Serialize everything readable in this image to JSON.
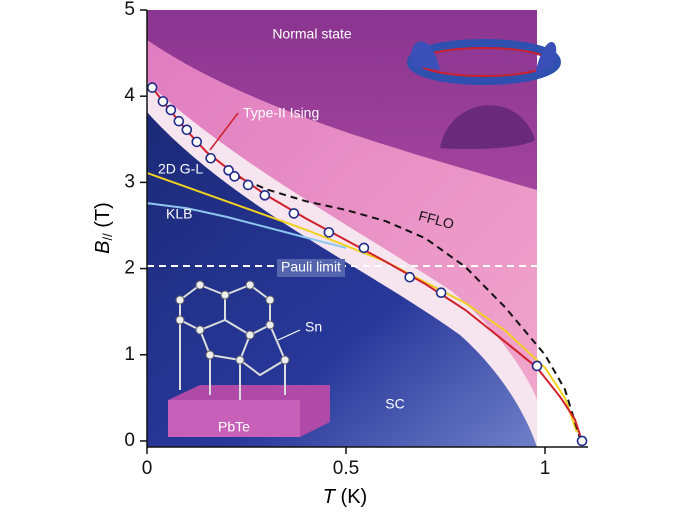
{
  "chart_data": {
    "type": "scatter",
    "xlabel": {
      "symbol": "T",
      "unit": "(K)"
    },
    "ylabel": {
      "symbol": "B",
      "subscript": "//",
      "unit": "(T)"
    },
    "xlim": [
      0,
      1.108
    ],
    "ylim": [
      -0.07,
      5
    ],
    "xticks": [
      0,
      0.5,
      1
    ],
    "yticks": [
      0,
      1,
      2,
      3,
      4,
      5
    ],
    "annotations": [
      "Normal state",
      "SC",
      "Sn",
      "PbTe"
    ],
    "series": [
      {
        "color": "#1f2a8a",
        "style": "markers",
        "x": [
          0.013,
          0.04,
          0.06,
          0.08,
          0.1,
          0.125,
          0.16,
          0.205,
          0.22,
          0.254,
          0.296,
          0.369,
          0.457,
          0.545,
          0.66,
          0.739,
          0.98,
          1.093
        ],
        "values": [
          4.1,
          3.94,
          3.84,
          3.71,
          3.61,
          3.47,
          3.28,
          3.14,
          3.07,
          2.97,
          2.85,
          2.64,
          2.42,
          2.24,
          1.9,
          1.72,
          0.87,
          0.0
        ]
      },
      {
        "name": "Type-II Ising",
        "color": "#d0202a",
        "style": "solid",
        "x": [
          0.013,
          0.05,
          0.1,
          0.15,
          0.2,
          0.3,
          0.4,
          0.5,
          0.6,
          0.7,
          0.8,
          0.9,
          0.98,
          1.04,
          1.075,
          1.093
        ],
        "values": [
          4.1,
          3.88,
          3.6,
          3.35,
          3.17,
          2.85,
          2.58,
          2.33,
          2.08,
          1.82,
          1.52,
          1.15,
          0.85,
          0.5,
          0.25,
          0.0
        ]
      },
      {
        "name": "FFLO",
        "color": "#111111",
        "style": "dashed",
        "x": [
          0.22,
          0.3,
          0.4,
          0.5,
          0.6,
          0.7,
          0.8,
          0.9,
          1.0,
          1.05,
          1.09
        ],
        "values": [
          3.08,
          2.92,
          2.78,
          2.68,
          2.55,
          2.35,
          2.02,
          1.55,
          1.0,
          0.6,
          0.0
        ]
      },
      {
        "name": "2D G-L",
        "color": "#f0d020",
        "style": "solid",
        "x": [
          0,
          0.2,
          0.4,
          0.6,
          0.8,
          0.9,
          1.0,
          1.05,
          1.08
        ],
        "values": [
          3.11,
          2.78,
          2.45,
          2.08,
          1.6,
          1.28,
          0.85,
          0.5,
          0.1
        ]
      },
      {
        "name": "KLB",
        "color": "#8ec8ee",
        "style": "solid",
        "x": [
          0,
          0.1,
          0.2,
          0.3,
          0.4,
          0.5
        ],
        "values": [
          2.76,
          2.7,
          2.6,
          2.48,
          2.36,
          2.24
        ]
      },
      {
        "name": "Pauli limit",
        "color": "#ffffff",
        "style": "dashed",
        "x": [
          0,
          0.98
        ],
        "values": [
          2.03,
          2.03
        ]
      }
    ]
  }
}
